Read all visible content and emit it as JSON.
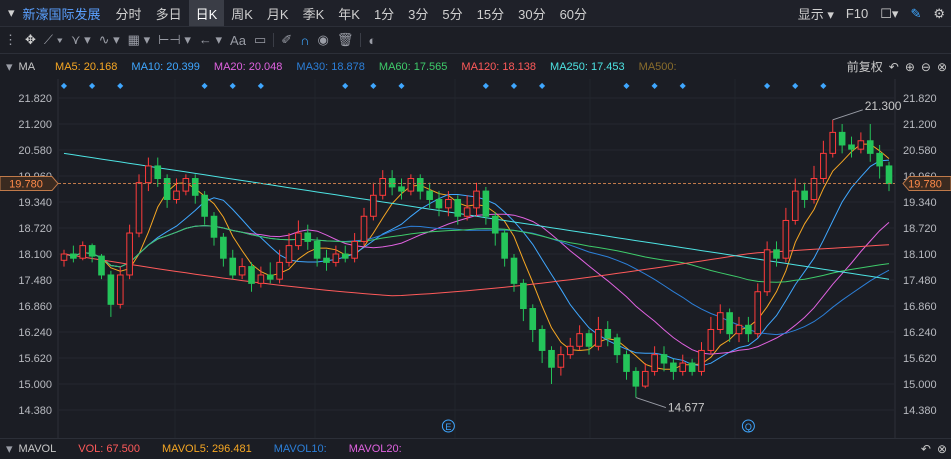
{
  "topbar": {
    "stock_name": "新濠国际发展",
    "periods": [
      "分时",
      "多日",
      "日K",
      "周K",
      "月K",
      "季K",
      "年K",
      "1分",
      "3分",
      "5分",
      "15分",
      "30分",
      "60分"
    ],
    "active_period": "日K",
    "display_label": "显示",
    "f10_label": "F10"
  },
  "toolbar": {
    "text_tool": "Aa"
  },
  "ma_bar": {
    "label": "MA",
    "items": [
      {
        "text": "MA5: 20.168",
        "color": "#f5a623"
      },
      {
        "text": "MA10: 20.399",
        "color": "#3fa7ff"
      },
      {
        "text": "MA20: 20.048",
        "color": "#e062e0"
      },
      {
        "text": "MA30: 18.878",
        "color": "#2c7fd8"
      },
      {
        "text": "MA60: 17.565",
        "color": "#3ecb6a"
      },
      {
        "text": "MA120: 18.138",
        "color": "#ff5a5a"
      },
      {
        "text": "MA250: 17.453",
        "color": "#4de3e3"
      },
      {
        "text": "MA500:",
        "color": "#8a6d2c"
      }
    ],
    "adjust_label": "前复权"
  },
  "chart_data": {
    "type": "candlestick",
    "y_ticks": [
      "21.820",
      "21.200",
      "20.580",
      "19.960",
      "19.340",
      "18.720",
      "18.100",
      "17.480",
      "16.860",
      "16.240",
      "15.620",
      "15.000",
      "14.380"
    ],
    "ylim": [
      14.0,
      22.0
    ],
    "current_price": "19.780",
    "high_label": "21.300",
    "low_label": "14.677",
    "event_markers": [
      "E",
      "Q"
    ],
    "candles": [
      [
        17.95,
        18.1,
        18.2,
        17.8
      ],
      [
        18.1,
        18.0,
        18.3,
        17.9
      ],
      [
        18.0,
        18.3,
        18.4,
        17.95
      ],
      [
        18.3,
        18.05,
        18.35,
        17.9
      ],
      [
        18.05,
        17.6,
        18.1,
        17.5
      ],
      [
        17.6,
        16.9,
        17.7,
        16.6
      ],
      [
        16.9,
        17.6,
        17.8,
        16.8
      ],
      [
        17.6,
        18.6,
        18.8,
        17.5
      ],
      [
        18.6,
        19.8,
        20.0,
        18.5
      ],
      [
        19.8,
        20.2,
        20.4,
        19.6
      ],
      [
        20.2,
        19.9,
        20.4,
        19.7
      ],
      [
        19.9,
        19.4,
        20.0,
        19.2
      ],
      [
        19.4,
        19.6,
        19.9,
        19.3
      ],
      [
        19.6,
        19.9,
        20.0,
        19.5
      ],
      [
        19.9,
        19.5,
        20.0,
        19.3
      ],
      [
        19.5,
        19.0,
        19.6,
        18.8
      ],
      [
        19.0,
        18.5,
        19.1,
        18.3
      ],
      [
        18.5,
        18.0,
        18.6,
        17.8
      ],
      [
        18.0,
        17.6,
        18.2,
        17.5
      ],
      [
        17.6,
        17.8,
        18.0,
        17.5
      ],
      [
        17.8,
        17.4,
        17.9,
        17.2
      ],
      [
        17.4,
        17.6,
        17.8,
        17.3
      ],
      [
        17.6,
        17.5,
        17.9,
        17.4
      ],
      [
        17.5,
        17.9,
        18.2,
        17.4
      ],
      [
        17.9,
        18.3,
        18.6,
        17.8
      ],
      [
        18.3,
        18.6,
        18.9,
        18.2
      ],
      [
        18.6,
        18.4,
        18.8,
        18.2
      ],
      [
        18.4,
        18.0,
        18.5,
        17.8
      ],
      [
        18.0,
        17.9,
        18.2,
        17.7
      ],
      [
        17.9,
        18.1,
        18.3,
        17.8
      ],
      [
        18.1,
        18.0,
        18.3,
        17.9
      ],
      [
        18.0,
        18.4,
        18.6,
        17.9
      ],
      [
        18.4,
        19.0,
        19.2,
        18.3
      ],
      [
        19.0,
        19.5,
        19.8,
        18.9
      ],
      [
        19.5,
        19.9,
        20.1,
        19.4
      ],
      [
        19.9,
        19.7,
        20.1,
        19.5
      ],
      [
        19.7,
        19.6,
        19.9,
        19.4
      ],
      [
        19.6,
        19.9,
        20.0,
        19.5
      ],
      [
        19.9,
        19.6,
        20.0,
        19.4
      ],
      [
        19.6,
        19.4,
        19.8,
        19.2
      ],
      [
        19.4,
        19.2,
        19.6,
        19.0
      ],
      [
        19.2,
        19.4,
        19.6,
        19.0
      ],
      [
        19.4,
        19.0,
        19.5,
        18.8
      ],
      [
        19.0,
        19.2,
        19.5,
        18.9
      ],
      [
        19.2,
        19.6,
        19.8,
        19.0
      ],
      [
        19.6,
        19.0,
        19.7,
        18.8
      ],
      [
        19.0,
        18.6,
        19.1,
        18.3
      ],
      [
        18.6,
        18.0,
        18.7,
        17.8
      ],
      [
        18.0,
        17.4,
        18.1,
        17.2
      ],
      [
        17.4,
        16.8,
        17.5,
        16.5
      ],
      [
        16.8,
        16.3,
        16.9,
        16.0
      ],
      [
        16.3,
        15.8,
        16.4,
        15.5
      ],
      [
        15.8,
        15.4,
        15.9,
        15.0
      ],
      [
        15.4,
        15.7,
        15.9,
        15.2
      ],
      [
        15.7,
        15.9,
        16.1,
        15.6
      ],
      [
        15.9,
        16.2,
        16.4,
        15.8
      ],
      [
        16.2,
        15.9,
        16.3,
        15.7
      ],
      [
        15.9,
        16.3,
        16.6,
        15.8
      ],
      [
        16.3,
        16.1,
        16.5,
        15.9
      ],
      [
        16.1,
        15.7,
        16.2,
        15.5
      ],
      [
        15.7,
        15.3,
        15.8,
        15.1
      ],
      [
        15.3,
        14.95,
        15.4,
        14.677
      ],
      [
        14.95,
        15.3,
        15.5,
        14.9
      ],
      [
        15.3,
        15.7,
        15.9,
        15.2
      ],
      [
        15.7,
        15.5,
        15.9,
        15.3
      ],
      [
        15.5,
        15.3,
        15.6,
        15.1
      ],
      [
        15.3,
        15.5,
        15.7,
        15.2
      ],
      [
        15.5,
        15.3,
        15.6,
        15.2
      ],
      [
        15.3,
        15.8,
        16.0,
        15.2
      ],
      [
        15.8,
        16.3,
        16.6,
        15.7
      ],
      [
        16.3,
        16.7,
        16.9,
        16.2
      ],
      [
        16.7,
        16.2,
        16.8,
        16.0
      ],
      [
        16.2,
        16.4,
        16.6,
        16.0
      ],
      [
        16.4,
        16.2,
        16.6,
        16.0
      ],
      [
        16.2,
        17.2,
        17.4,
        16.1
      ],
      [
        17.2,
        18.2,
        18.4,
        17.1
      ],
      [
        18.2,
        18.0,
        18.4,
        17.8
      ],
      [
        18.0,
        18.9,
        19.2,
        17.9
      ],
      [
        18.9,
        19.6,
        19.9,
        18.8
      ],
      [
        19.6,
        19.4,
        19.8,
        19.2
      ],
      [
        19.4,
        19.9,
        20.2,
        19.3
      ],
      [
        19.9,
        20.5,
        20.8,
        19.8
      ],
      [
        20.5,
        21.0,
        21.3,
        20.4
      ],
      [
        21.0,
        20.7,
        21.2,
        20.5
      ],
      [
        20.7,
        20.6,
        20.9,
        20.4
      ],
      [
        20.6,
        20.8,
        21.0,
        20.5
      ],
      [
        20.8,
        20.5,
        21.2,
        20.3
      ],
      [
        20.5,
        20.2,
        20.7,
        19.9
      ],
      [
        20.2,
        19.78,
        20.3,
        19.6
      ]
    ],
    "ma_lines": [
      {
        "name": "MA5",
        "color": "#f5a623"
      },
      {
        "name": "MA10",
        "color": "#3fa7ff"
      },
      {
        "name": "MA20",
        "color": "#e062e0"
      },
      {
        "name": "MA30",
        "color": "#2c7fd8"
      },
      {
        "name": "MA60",
        "color": "#3ecb6a"
      },
      {
        "name": "MA120",
        "color": "#ff5a5a"
      },
      {
        "name": "MA250",
        "color": "#4de3e3"
      }
    ],
    "up_color": "#ff3b3b",
    "down_color": "#24c45a"
  },
  "vol_bar": {
    "items": [
      {
        "text": "MAVOL",
        "color": "#c8c8c8"
      },
      {
        "text": "VOL: 67.500",
        "color": "#ff5a5a"
      },
      {
        "text": "MAVOL5: 296.481",
        "color": "#f5a623"
      },
      {
        "text": "MAVOL10:",
        "color": "#2c7fd8"
      },
      {
        "text": "MAVOL20:",
        "color": "#e062e0"
      }
    ]
  }
}
